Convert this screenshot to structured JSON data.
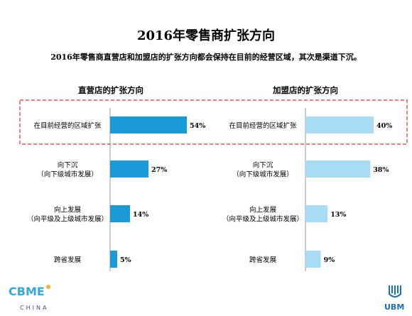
{
  "title": "2016年零售商扩张方向",
  "subtitle": "2016年零售商直营店和加盟店的扩张方向都会保持在目前的经营区域，其次是渠道下沉。",
  "colors": {
    "direct": "#1a9ad6",
    "franchise": "#a8dcf5",
    "highlight": "#d9312b",
    "axis": "#9a9a9a"
  },
  "chart_data": [
    {
      "type": "bar",
      "orientation": "horizontal",
      "title": "直营店的扩张方向",
      "categories": [
        [
          "在目前经营的区域扩张"
        ],
        [
          "向下沉",
          "（向下级城市发展）"
        ],
        [
          "向上发展",
          "（向平级及上级城市发展）"
        ],
        [
          "跨省发展"
        ]
      ],
      "values": [
        54,
        27,
        14,
        5
      ],
      "value_labels": [
        "54%",
        "27%",
        "14%",
        "5%"
      ],
      "unit": "%",
      "xlim": [
        0,
        100
      ]
    },
    {
      "type": "bar",
      "orientation": "horizontal",
      "title": "加盟店的扩张方向",
      "categories": [
        [
          "在目前经营的区域扩张"
        ],
        [
          "向下沉",
          "（向下级城市发展）"
        ],
        [
          "向上发展",
          "（向平级及上级城市发展）"
        ],
        [
          "跨省发展"
        ]
      ],
      "values": [
        40,
        38,
        13,
        9
      ],
      "value_labels": [
        "40%",
        "38%",
        "13%",
        "9%"
      ],
      "unit": "%",
      "xlim": [
        0,
        100
      ]
    }
  ],
  "logos": {
    "left_brand": "CBME",
    "left_sub": "CHINA",
    "right_brand": "UBM"
  }
}
